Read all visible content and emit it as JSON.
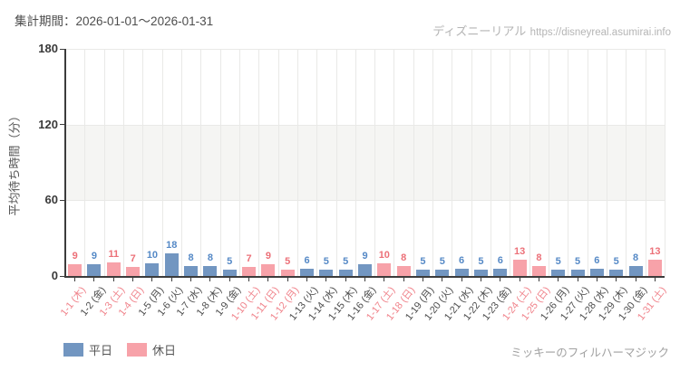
{
  "header": {
    "period_label": "集計期間：2026-01-01～2026-01-31",
    "site_name": "ディズニーリアル",
    "site_url": "https://disneyreal.asumirai.info"
  },
  "chart_data": {
    "type": "bar",
    "title": "",
    "xlabel": "",
    "ylabel": "平均待ち時間（分）",
    "ylim": [
      0,
      180
    ],
    "yticks": [
      0,
      60,
      120,
      180
    ],
    "shaded_band": {
      "from": 60,
      "to": 120
    },
    "grid": true,
    "legend_position": "bottom-left",
    "categories": [
      "1-1 (木)",
      "1-2 (金)",
      "1-3 (土)",
      "1-4 (日)",
      "1-5 (月)",
      "1-6 (火)",
      "1-7 (水)",
      "1-8 (木)",
      "1-9 (金)",
      "1-10 (土)",
      "1-11 (日)",
      "1-12 (月)",
      "1-13 (火)",
      "1-14 (水)",
      "1-15 (木)",
      "1-16 (金)",
      "1-17 (土)",
      "1-18 (日)",
      "1-19 (月)",
      "1-20 (火)",
      "1-21 (水)",
      "1-22 (木)",
      "1-23 (金)",
      "1-24 (土)",
      "1-25 (日)",
      "1-26 (月)",
      "1-27 (火)",
      "1-28 (水)",
      "1-29 (木)",
      "1-30 (金)",
      "1-31 (土)"
    ],
    "values": [
      9,
      9,
      11,
      7,
      10,
      18,
      8,
      8,
      5,
      7,
      9,
      5,
      6,
      5,
      5,
      9,
      10,
      8,
      5,
      5,
      6,
      5,
      6,
      13,
      8,
      5,
      5,
      6,
      5,
      8,
      13
    ],
    "day_types": [
      "holiday",
      "weekday",
      "holiday",
      "holiday",
      "weekday",
      "weekday",
      "weekday",
      "weekday",
      "weekday",
      "holiday",
      "holiday",
      "holiday",
      "weekday",
      "weekday",
      "weekday",
      "weekday",
      "holiday",
      "holiday",
      "weekday",
      "weekday",
      "weekday",
      "weekday",
      "weekday",
      "holiday",
      "holiday",
      "weekday",
      "weekday",
      "weekday",
      "weekday",
      "weekday",
      "holiday"
    ],
    "series_colors": {
      "weekday": "#7296c1",
      "holiday": "#f7a2a9"
    },
    "value_label_colors": {
      "weekday": "#5589c6",
      "holiday": "#ec7078"
    },
    "axis_label_colors": {
      "weekday": "#4d4d4d",
      "holiday": "#f0838b"
    }
  },
  "legend": {
    "items": [
      {
        "label": "平日",
        "type": "weekday"
      },
      {
        "label": "休日",
        "type": "holiday"
      }
    ]
  },
  "footer": {
    "attraction_name": "ミッキーのフィルハーマジック"
  }
}
